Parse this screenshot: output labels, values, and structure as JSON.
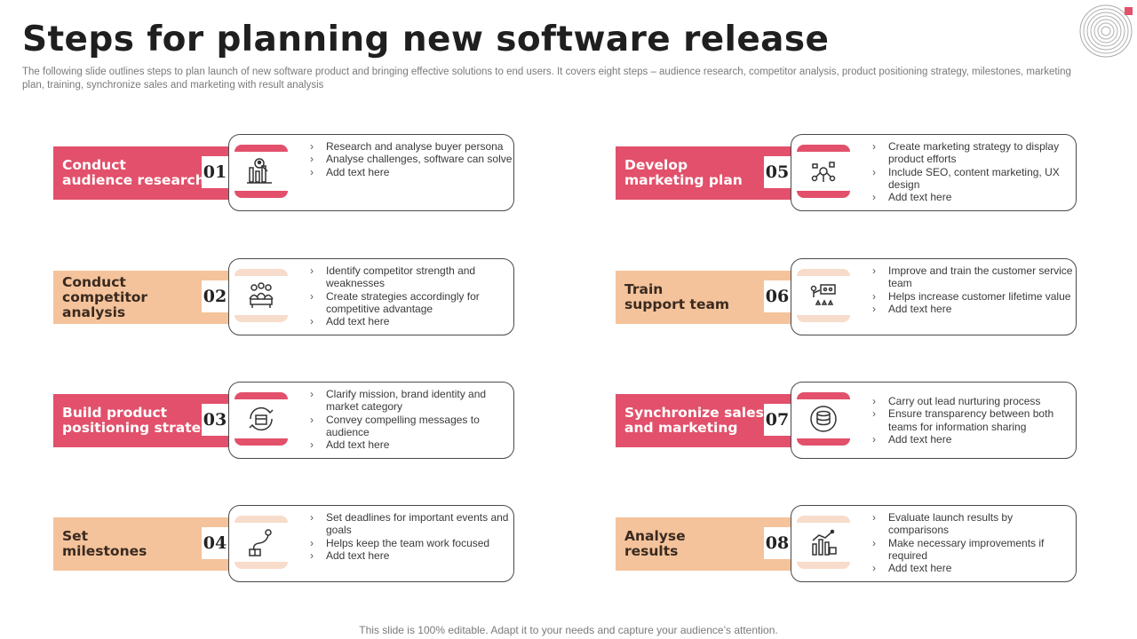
{
  "title": "Steps for planning new software release",
  "subtitle": "The following slide outlines steps to plan launch of new software product and bringing effective solutions to end users. It covers eight steps – audience research, competitor analysis, product positioning strategy, milestones, marketing plan, training, synchronize sales and marketing with result analysis",
  "footer": "This slide is 100% editable. Adapt it to your needs and capture your audience’s attention.",
  "colors": {
    "accent_red": "#e2506b",
    "accent_peach": "#f4c39b",
    "title": "#1f1f1f"
  },
  "steps": [
    {
      "number": "01",
      "title": "Conduct\naudience research",
      "icon": "research-chart-icon",
      "bullets": [
        "Research and analyse buyer persona",
        "Analyse challenges, software can solve",
        "Add text here"
      ]
    },
    {
      "number": "02",
      "title": "Conduct\ncompetitor\nanalysis",
      "icon": "competitors-icon",
      "bullets": [
        "Identify competitor strength and weaknesses",
        "Create strategies accordingly for competitive advantage",
        "Add text here"
      ]
    },
    {
      "number": "03",
      "title": "Build product\npositioning strategy",
      "icon": "positioning-cycle-icon",
      "bullets": [
        "Clarify mission, brand identity and market category",
        "Convey compelling messages to audience",
        "Add text here"
      ]
    },
    {
      "number": "04",
      "title": "Set\nmilestones",
      "icon": "milestone-path-icon",
      "bullets": [
        "Set deadlines for important events and goals",
        "Helps keep the team work focused",
        "Add text here"
      ]
    },
    {
      "number": "05",
      "title": "Develop\nmarketing plan",
      "icon": "marketing-plan-icon",
      "bullets": [
        "Create marketing strategy to display product efforts",
        "Include SEO, content marketing, UX design",
        "Add text here"
      ]
    },
    {
      "number": "06",
      "title": "Train\nsupport team",
      "icon": "training-team-icon",
      "bullets": [
        "Improve and train the customer service team",
        "Helps increase customer lifetime value",
        "Add text here"
      ]
    },
    {
      "number": "07",
      "title": "Synchronize sales\nand marketing",
      "icon": "sync-database-icon",
      "bullets": [
        "Carry out lead nurturing process",
        "Ensure transparency between both teams for information sharing",
        "Add text here"
      ]
    },
    {
      "number": "08",
      "title": "Analyse\nresults",
      "icon": "results-chart-icon",
      "bullets": [
        "Evaluate launch results by comparisons",
        "Make necessary improvements if required",
        "Add text here"
      ]
    }
  ]
}
